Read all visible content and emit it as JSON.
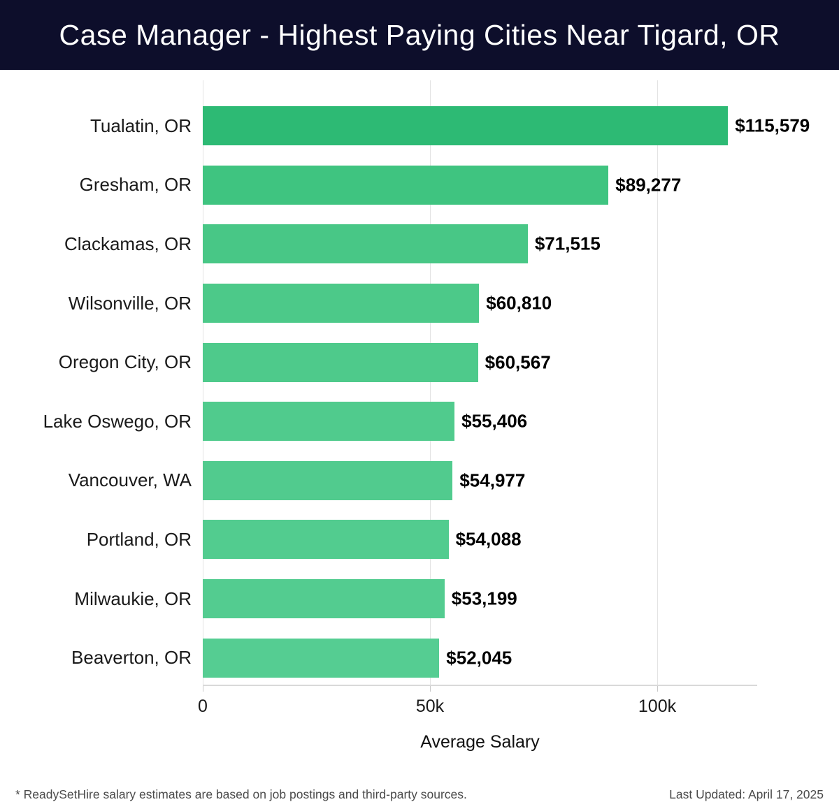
{
  "header": {
    "title": "Case Manager - Highest Paying Cities Near Tigard, OR",
    "bg_color": "#0d0e2b",
    "text_color": "#ffffff"
  },
  "chart_data": {
    "type": "bar",
    "orientation": "horizontal",
    "title": "Case Manager - Highest Paying Cities Near Tigard, OR",
    "categories": [
      "Tualatin, OR",
      "Gresham, OR",
      "Clackamas, OR",
      "Wilsonville, OR",
      "Oregon City, OR",
      "Lake Oswego, OR",
      "Vancouver, WA",
      "Portland, OR",
      "Milwaukie, OR",
      "Beaverton, OR"
    ],
    "values": [
      115579,
      89277,
      71515,
      60810,
      60567,
      55406,
      54977,
      54088,
      53199,
      52045
    ],
    "value_labels": [
      "$115,579",
      "$89,277",
      "$71,515",
      "$60,810",
      "$60,567",
      "$55,406",
      "$54,977",
      "$54,088",
      "$53,199",
      "$52,045"
    ],
    "bar_colors": [
      "#2dba74",
      "#3fc480",
      "#48c786",
      "#4cc989",
      "#4eca8b",
      "#50cb8d",
      "#51cb8e",
      "#52cc8f",
      "#53cc90",
      "#55cd92"
    ],
    "xlabel": "Average Salary",
    "ylabel": "",
    "xlim": [
      0,
      122000
    ],
    "x_ticks": [
      {
        "value": 0,
        "label": "0"
      },
      {
        "value": 50000,
        "label": "50k"
      },
      {
        "value": 100000,
        "label": "100k"
      }
    ],
    "grid": true,
    "gridline_color": "#e3e3e3",
    "legend": false
  },
  "footer": {
    "note": "* ReadySetHire salary estimates are based on job postings and third-party sources.",
    "updated": "Last Updated: April 17, 2025"
  }
}
